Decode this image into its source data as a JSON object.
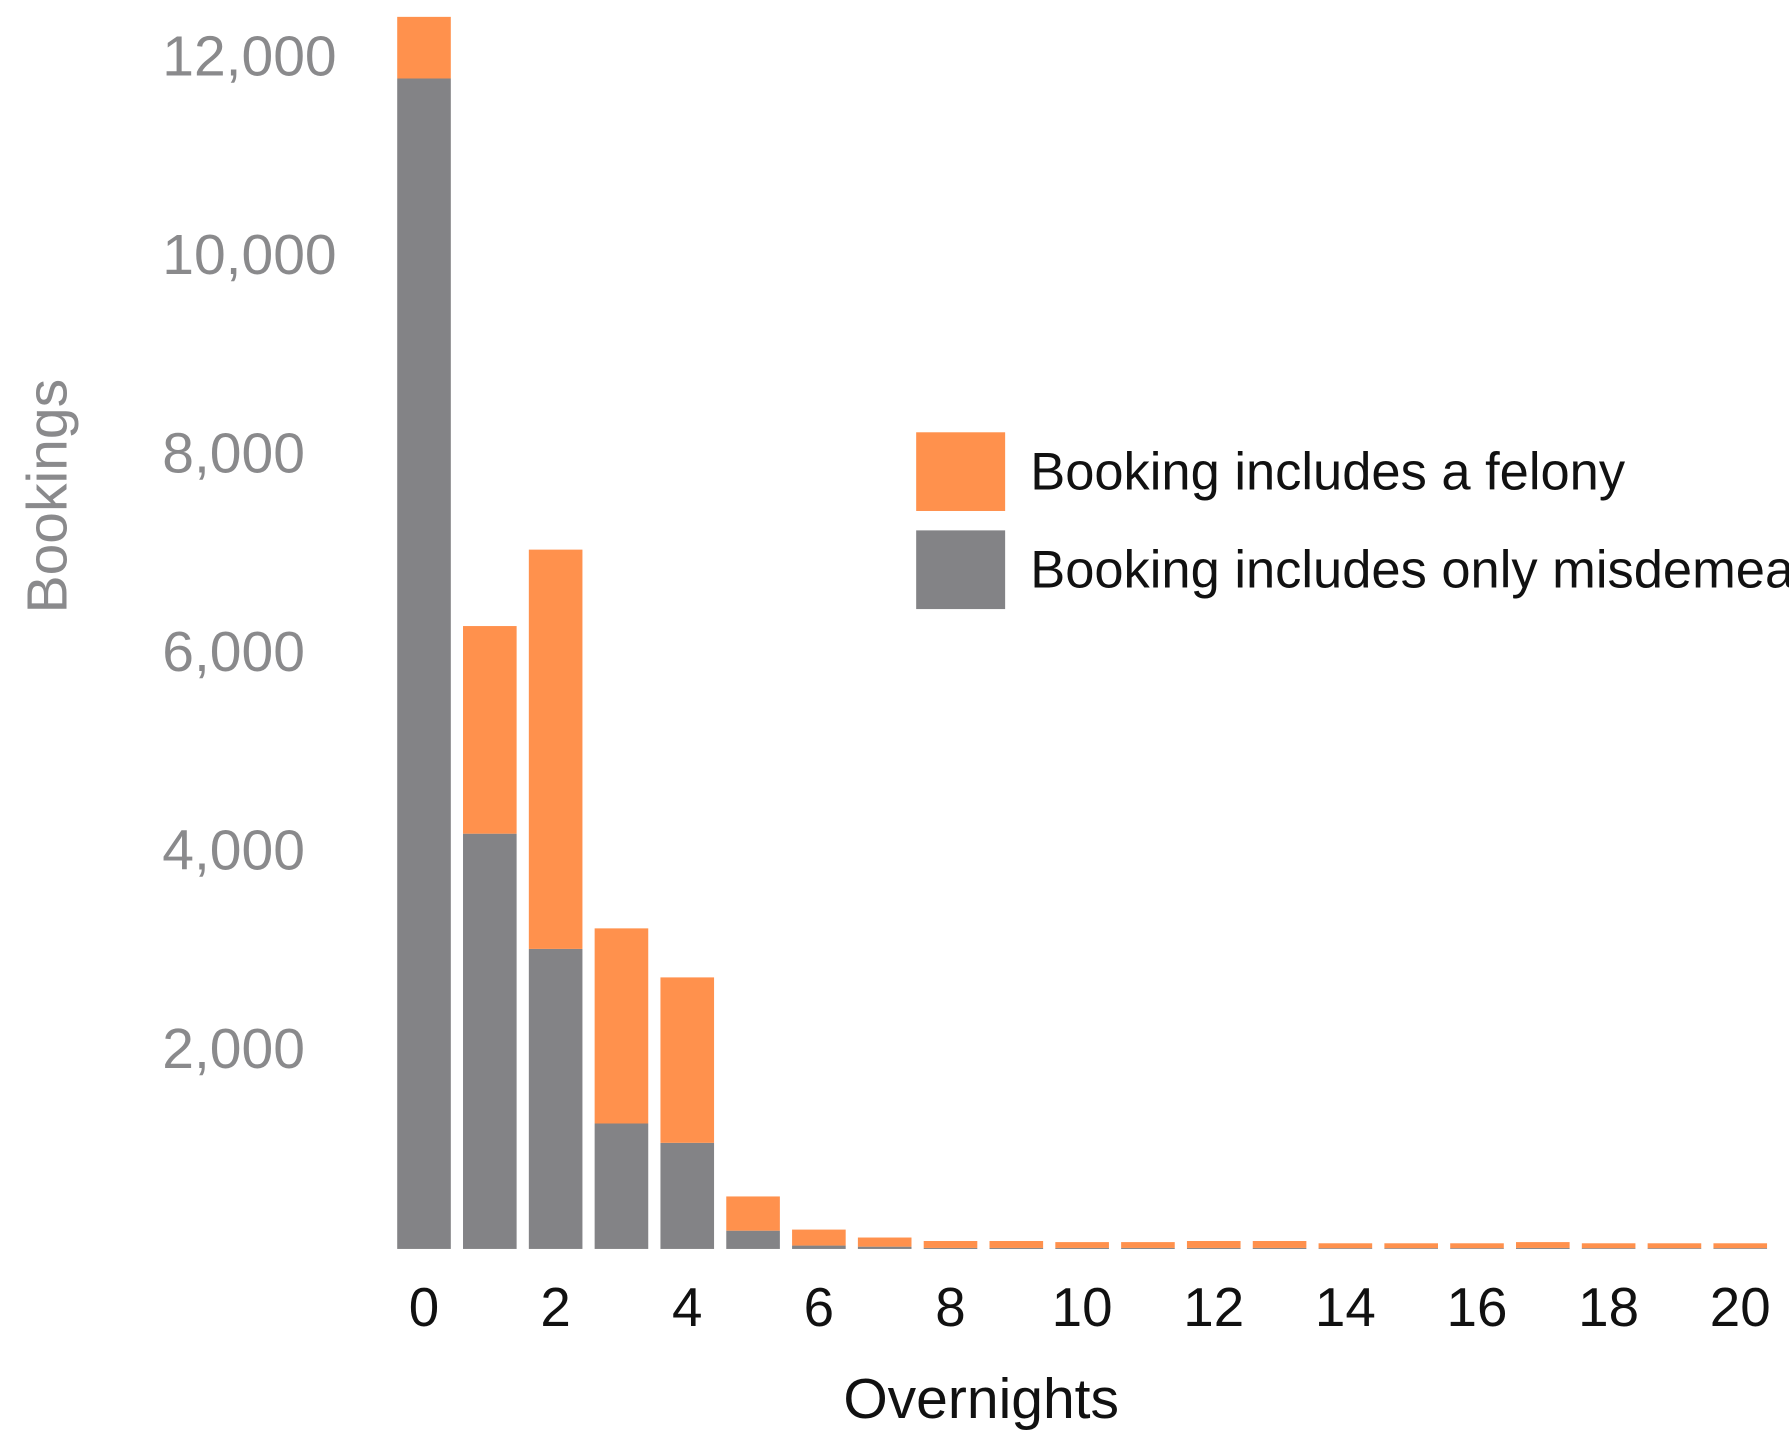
{
  "chart_data": {
    "type": "stacked-bar",
    "x_label": "Overnights",
    "y_label": "Bookings",
    "categories": [
      "0",
      null,
      "2",
      null,
      "4",
      null,
      "6",
      null,
      "8",
      null,
      "10",
      null,
      "12",
      null,
      "14",
      null,
      "16",
      null,
      "18",
      null,
      "20"
    ],
    "series": [
      {
        "name": "Booking includes only misdemeanors",
        "color": "#838386",
        "values": [
          11793,
          4184,
          3023,
          1264,
          1069,
          184,
          34,
          23,
          10,
          10,
          10,
          10,
          10,
          10,
          8,
          8,
          8,
          10,
          8,
          8,
          8
        ]
      },
      {
        "name": "Booking includes a felony",
        "color": "#ff914d",
        "values": [
          621,
          2092,
          4023,
          1966,
          1667,
          345,
          161,
          92,
          70,
          70,
          59,
          59,
          70,
          70,
          49,
          49,
          49,
          59,
          49,
          49,
          49
        ]
      }
    ],
    "ylim": [
      0,
      12400
    ],
    "yticks": [
      {
        "value": 2000,
        "label": "2,000"
      },
      {
        "value": 4000,
        "label": "4,000"
      },
      {
        "value": 6000,
        "label": "6,000"
      },
      {
        "value": 8000,
        "label": "8,000"
      },
      {
        "value": 10000,
        "label": "10,000"
      },
      {
        "value": 12000,
        "label": "12,000"
      }
    ],
    "grid": false
  }
}
